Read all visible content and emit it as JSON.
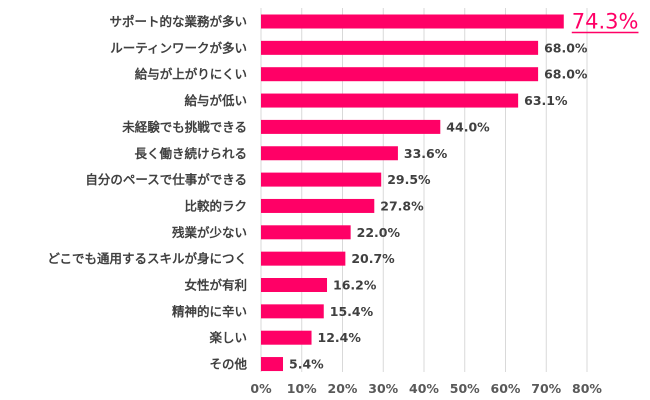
{
  "chart_data": {
    "type": "bar",
    "orientation": "horizontal",
    "categories": [
      "サポート的な業務が多い",
      "ルーティンワークが多い",
      "給与が上がりにくい",
      "給与が低い",
      "未経験でも挑戦できる",
      "長く働き続けられる",
      "自分のペースで仕事ができる",
      "比較的ラク",
      "残業が少ない",
      "どこでも通用するスキルが身につく",
      "女性が有利",
      "精神的に辛い",
      "楽しい",
      "その他"
    ],
    "values": [
      74.3,
      68.0,
      68.0,
      63.1,
      44.0,
      33.6,
      29.5,
      27.8,
      22.0,
      20.7,
      16.2,
      15.4,
      12.4,
      5.4
    ],
    "data_labels": [
      "74.3%",
      "68.0%",
      "68.0%",
      "63.1%",
      "44.0%",
      "33.6%",
      "29.5%",
      "27.8%",
      "22.0%",
      "20.7%",
      "16.2%",
      "15.4%",
      "12.4%",
      "5.4%"
    ],
    "highlight_index": 0,
    "xlim": [
      0,
      80
    ],
    "x_ticks": [
      "0%",
      "10%",
      "20%",
      "30%",
      "40%",
      "50%",
      "60%",
      "70%",
      "80%"
    ],
    "grid": "vertical",
    "bar_color": "#ff0066",
    "highlight_label_color": "#ff0066",
    "text_color": "#404040",
    "grid_color": "#d9d9d9"
  }
}
